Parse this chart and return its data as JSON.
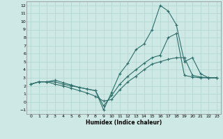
{
  "xlabel": "Humidex (Indice chaleur)",
  "xlim": [
    -0.5,
    23.5
  ],
  "ylim": [
    -1.5,
    12.5
  ],
  "xticks": [
    0,
    1,
    2,
    3,
    4,
    5,
    6,
    7,
    8,
    9,
    10,
    11,
    12,
    13,
    14,
    15,
    16,
    17,
    18,
    19,
    20,
    21,
    22,
    23
  ],
  "yticks": [
    -1,
    0,
    1,
    2,
    3,
    4,
    5,
    6,
    7,
    8,
    9,
    10,
    11,
    12
  ],
  "bg_color": "#cee9e5",
  "grid_color": "#aed4cf",
  "line_color": "#2d6e6a",
  "line1_x": [
    0,
    1,
    2,
    3,
    4,
    5,
    6,
    7,
    8,
    9,
    10,
    11,
    12,
    13,
    14,
    15,
    16,
    17,
    18,
    19,
    20,
    21,
    22,
    23
  ],
  "line1_y": [
    2.2,
    2.5,
    2.5,
    2.7,
    2.4,
    2.1,
    1.8,
    1.6,
    1.4,
    -1.0,
    1.2,
    3.5,
    4.8,
    6.5,
    7.2,
    9.0,
    12.0,
    11.3,
    9.6,
    5.0,
    5.5,
    3.5,
    3.0,
    3.0
  ],
  "line2_x": [
    0,
    1,
    2,
    3,
    4,
    5,
    6,
    7,
    8,
    9,
    10,
    11,
    12,
    13,
    14,
    15,
    16,
    17,
    18,
    19,
    20,
    21,
    22,
    23
  ],
  "line2_y": [
    2.2,
    2.5,
    2.5,
    2.2,
    2.0,
    1.7,
    1.4,
    1.1,
    0.7,
    0.1,
    0.3,
    1.5,
    2.5,
    3.2,
    4.0,
    4.7,
    5.0,
    5.3,
    5.5,
    5.5,
    3.3,
    3.1,
    3.0,
    3.0
  ],
  "line3_x": [
    0,
    1,
    2,
    3,
    4,
    5,
    6,
    7,
    8,
    9,
    10,
    11,
    12,
    13,
    14,
    15,
    16,
    17,
    18,
    19,
    20,
    21,
    22,
    23
  ],
  "line3_y": [
    2.2,
    2.5,
    2.5,
    2.5,
    2.2,
    2.0,
    1.8,
    1.6,
    1.4,
    -0.5,
    0.8,
    2.2,
    3.2,
    4.0,
    4.8,
    5.5,
    5.8,
    8.0,
    8.5,
    3.3,
    3.1,
    3.0,
    3.0,
    3.0
  ]
}
